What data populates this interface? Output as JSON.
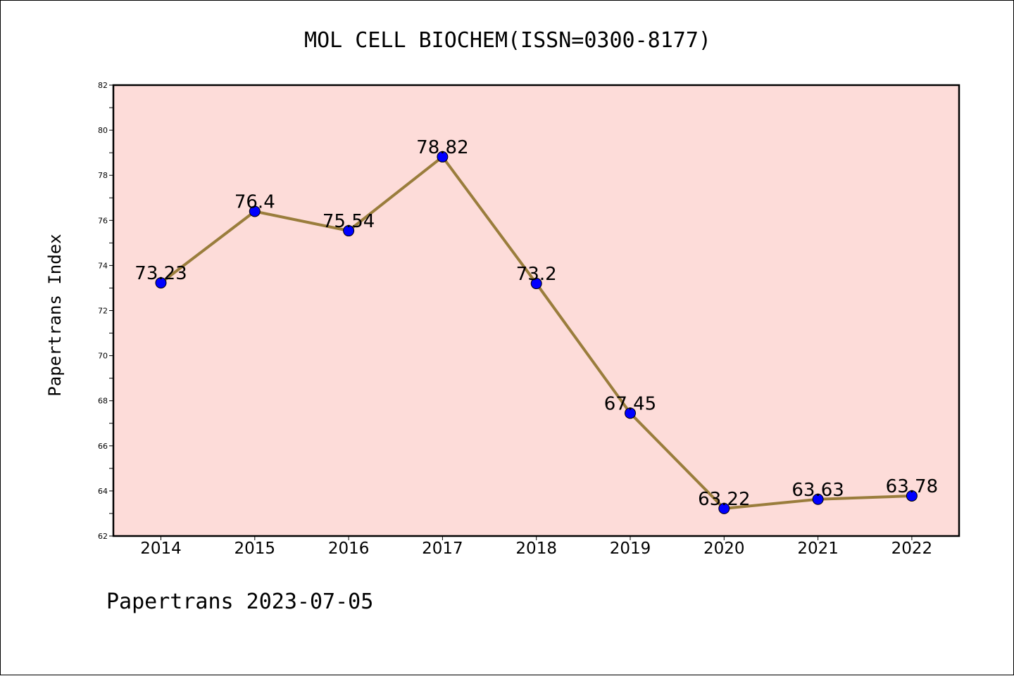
{
  "chart_data": {
    "type": "line",
    "title": "MOL CELL BIOCHEM(ISSN=0300-8177)",
    "ylabel": "Papertrans Index",
    "xlabel": "",
    "footer": "Papertrans 2023-07-05",
    "categories": [
      "2014",
      "2015",
      "2016",
      "2017",
      "2018",
      "2019",
      "2020",
      "2021",
      "2022"
    ],
    "series": [
      {
        "values": [
          73.23,
          76.4,
          75.54,
          78.82,
          73.2,
          67.45,
          63.22,
          63.63,
          63.78
        ],
        "data_labels": [
          "73.23",
          "76.4",
          "75.54",
          "78.82",
          "73.2",
          "67.45",
          "63.22",
          "63.63",
          "63.78"
        ]
      }
    ],
    "ylim": [
      62,
      82
    ],
    "yticks": [
      "62",
      "64",
      "66",
      "68",
      "70",
      "72",
      "74",
      "76",
      "78",
      "80",
      "82"
    ],
    "grid": false,
    "legend": "none",
    "colors": {
      "plot_background": "#fddcd9",
      "line": "#9a7d3c",
      "marker": "#0000ff"
    }
  }
}
